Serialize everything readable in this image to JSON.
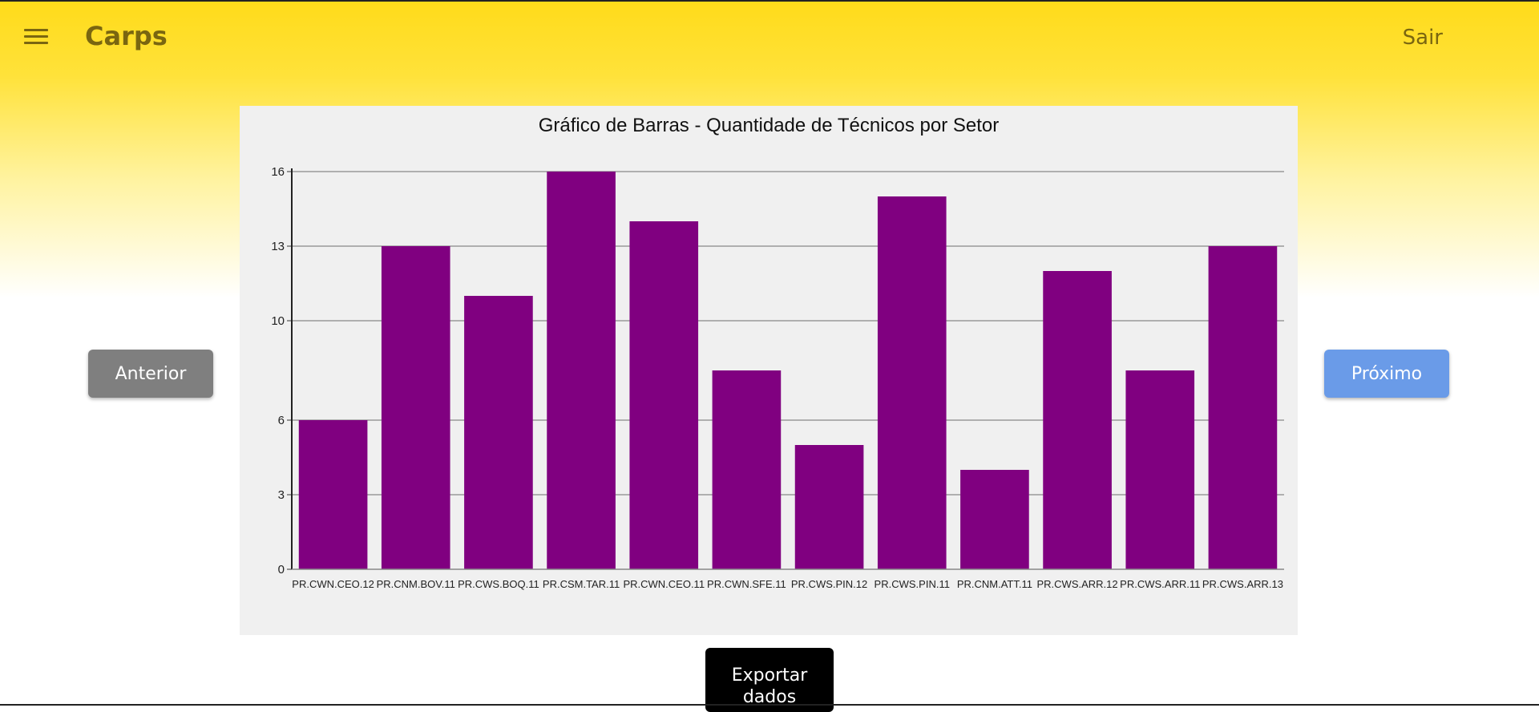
{
  "header": {
    "app_title": "Carps",
    "menu_icon": "hamburger-menu-icon",
    "logout_label": "Sair",
    "background_color_top": "#ffdb1a"
  },
  "navigation": {
    "prev_label": "Anterior",
    "next_label": "Próximo"
  },
  "export": {
    "label_line1": "Exportar",
    "label_line2": "dados"
  },
  "chart_data": {
    "type": "bar",
    "title": "Gráfico de Barras - Quantidade de Técnicos por Setor",
    "xlabel": "",
    "ylabel": "",
    "categories": [
      "PR.CWN.CEO.12",
      "PR.CNM.BOV.11",
      "PR.CWS.BOQ.11",
      "PR.CSM.TAR.11",
      "PR.CWN.CEO.11",
      "PR.CWN.SFE.11",
      "PR.CWS.PIN.12",
      "PR.CWS.PIN.11",
      "PR.CNM.ATT.11",
      "PR.CWS.ARR.12",
      "PR.CWS.ARR.11",
      "PR.CWS.ARR.13"
    ],
    "values": [
      6,
      13,
      11,
      16,
      14,
      8,
      5,
      15,
      4,
      12,
      8,
      13
    ],
    "ylim": [
      0,
      16
    ],
    "yticks": [
      0,
      3,
      6,
      10,
      13,
      16
    ],
    "bar_color": "#800080",
    "grid": true,
    "legend": "none"
  }
}
